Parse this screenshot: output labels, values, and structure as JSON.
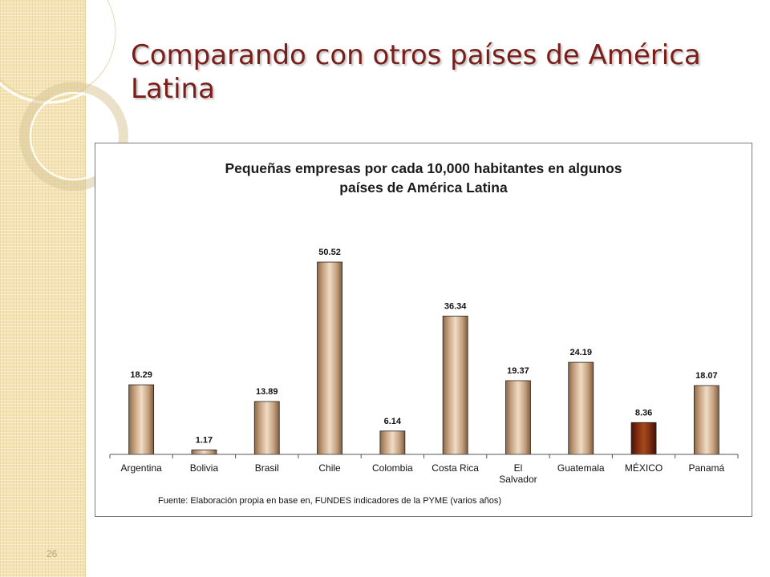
{
  "slide": {
    "title": "Comparando con otros países de América Latina",
    "page_number": "26"
  },
  "colors": {
    "title": "#7a1e1a",
    "bar_default": "#c9a27c",
    "bar_highlight": "#7b2a10"
  },
  "chart_data": {
    "type": "bar",
    "title_lines": [
      "Pequeñas empresas por cada 10,000 habitantes en algunos",
      "países de América Latina"
    ],
    "categories": [
      "Argentina",
      "Bolivia",
      "Brasil",
      "Chile",
      "Colombia",
      "Costa Rica",
      "El Salvador",
      "Guatemala",
      "MÉXICO",
      "Panamá"
    ],
    "category_lines": [
      [
        "Argentina"
      ],
      [
        "Bolivia"
      ],
      [
        "Brasil"
      ],
      [
        "Chile"
      ],
      [
        "Colombia"
      ],
      [
        "Costa Rica"
      ],
      [
        "El",
        "Salvador"
      ],
      [
        "Guatemala"
      ],
      [
        "MÉXICO"
      ],
      [
        "Panamá"
      ]
    ],
    "values": [
      18.29,
      1.17,
      13.89,
      50.52,
      6.14,
      36.34,
      19.37,
      24.19,
      8.36,
      18.07
    ],
    "value_labels": [
      "18.29",
      "1.17",
      "13.89",
      "50.52",
      "6.14",
      "36.34",
      "19.37",
      "24.19",
      "8.36",
      "18.07"
    ],
    "highlight": "MÉXICO",
    "ylim": [
      0,
      55
    ],
    "grid": false,
    "xlabel": "",
    "ylabel": "",
    "source_note": "Fuente: Elaboración propia en base en, FUNDES indicadores de la PYME (varios años)"
  }
}
